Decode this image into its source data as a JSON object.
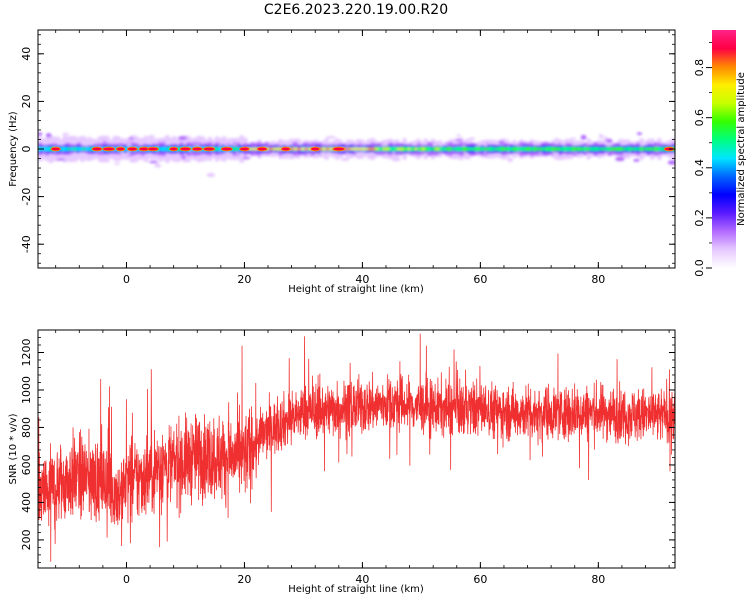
{
  "figure_title": "C2E6.2023.220.19.00.R20",
  "chart_data": [
    {
      "type": "heatmap",
      "xlabel": "Height of straight line (km)",
      "ylabel": "Frequency (Hz)",
      "xlim": [
        -15,
        93
      ],
      "ylim": [
        -50,
        50
      ],
      "xticks": [
        0,
        20,
        40,
        60,
        80
      ],
      "yticks": [
        40,
        20,
        0,
        -20,
        -40
      ],
      "colorbar": {
        "label": "Normalized spectral amplitude",
        "range": [
          0,
          0.95
        ],
        "ticks": [
          "0.0",
          "0.2",
          "0.4",
          "0.6",
          "0.8"
        ],
        "tick_values": [
          0.0,
          0.2,
          0.4,
          0.6,
          0.8
        ],
        "colormap": [
          "#ffffff",
          "#e6c9ff",
          "#b36bff",
          "#5a1aff",
          "#0000ff",
          "#0066ff",
          "#00e6ff",
          "#00ff80",
          "#33ff00",
          "#c8ff00",
          "#ffee00",
          "#ff8800",
          "#ff0044",
          "#ff2288"
        ]
      },
      "band": {
        "center_hz": 0,
        "hot_spots_km": [
          -12,
          -5,
          -3,
          -1,
          1,
          3,
          4.5,
          8,
          10,
          12,
          14,
          17,
          20,
          23,
          27,
          32,
          36,
          92
        ]
      }
    },
    {
      "type": "line",
      "xlabel": "Height of straight line (km)",
      "ylabel": "SNR (10 * v/v)",
      "xlim": [
        -15,
        93
      ],
      "ylim": [
        50,
        1320
      ],
      "xticks": [
        0,
        20,
        40,
        60,
        80
      ],
      "yticks": [
        200,
        400,
        600,
        800,
        1000,
        1200
      ],
      "series": [
        {
          "color": "#f03030",
          "x": [
            -15,
            -12,
            -9,
            -6,
            -3,
            -1,
            0,
            2,
            4,
            6,
            8,
            10,
            12,
            15,
            18,
            20,
            23,
            26,
            30,
            35,
            40,
            45,
            50,
            55,
            60,
            65,
            70,
            75,
            80,
            85,
            90,
            93
          ],
          "y": [
            420,
            480,
            540,
            520,
            500,
            430,
            520,
            520,
            560,
            600,
            600,
            620,
            650,
            640,
            640,
            650,
            760,
            820,
            880,
            900,
            910,
            930,
            910,
            900,
            900,
            880,
            880,
            880,
            880,
            870,
            860,
            880
          ],
          "noise_spread": 150
        }
      ]
    }
  ]
}
